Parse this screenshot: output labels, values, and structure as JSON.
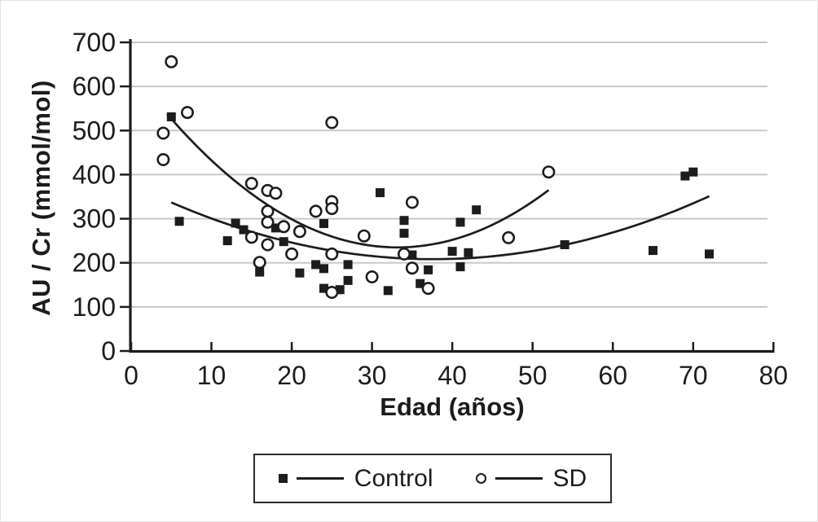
{
  "chart_data": {
    "type": "scatter",
    "title": "",
    "xlabel": "Edad (años)",
    "ylabel": "AU / Cr (mmol/mol)",
    "xlim": [
      0,
      80
    ],
    "ylim": [
      0,
      700
    ],
    "x_ticks": [
      0,
      10,
      20,
      30,
      40,
      50,
      60,
      70,
      80
    ],
    "y_ticks": [
      0,
      100,
      200,
      300,
      400,
      500,
      600,
      700
    ],
    "grid": "horizontal light gray lines at each y tick",
    "legend_position": "boxed, centered below x-axis title",
    "series": [
      {
        "name": "Control",
        "marker": "filled-square",
        "points": [
          [
            5,
            531
          ],
          [
            6,
            294
          ],
          [
            12,
            250
          ],
          [
            13,
            290
          ],
          [
            14,
            275
          ],
          [
            16,
            179
          ],
          [
            18,
            279
          ],
          [
            19,
            248
          ],
          [
            21,
            177
          ],
          [
            23,
            196
          ],
          [
            24,
            289
          ],
          [
            24,
            187
          ],
          [
            24,
            142
          ],
          [
            26,
            139
          ],
          [
            27,
            196
          ],
          [
            27,
            160
          ],
          [
            31,
            359
          ],
          [
            32,
            137
          ],
          [
            34,
            296
          ],
          [
            34,
            267
          ],
          [
            35,
            218
          ],
          [
            36,
            153
          ],
          [
            37,
            184
          ],
          [
            40,
            226
          ],
          [
            41,
            292
          ],
          [
            41,
            191
          ],
          [
            42,
            223
          ],
          [
            43,
            320
          ],
          [
            54,
            241
          ],
          [
            65,
            228
          ],
          [
            69,
            397
          ],
          [
            70,
            406
          ],
          [
            72,
            220
          ]
        ],
        "fit_curve": {
          "type": "quadratic",
          "a": 0.1208,
          "b": -9.093,
          "c": 379.4,
          "x_range": [
            5,
            72
          ]
        }
      },
      {
        "name": "SD",
        "marker": "open-circle",
        "points": [
          [
            4,
            494
          ],
          [
            4,
            434
          ],
          [
            5,
            656
          ],
          [
            7,
            541
          ],
          [
            15,
            380
          ],
          [
            15,
            258
          ],
          [
            16,
            201
          ],
          [
            17,
            364
          ],
          [
            17,
            317
          ],
          [
            17,
            292
          ],
          [
            17,
            241
          ],
          [
            18,
            358
          ],
          [
            19,
            282
          ],
          [
            20,
            220
          ],
          [
            21,
            271
          ],
          [
            23,
            317
          ],
          [
            25,
            518
          ],
          [
            25,
            339
          ],
          [
            25,
            323
          ],
          [
            25,
            220
          ],
          [
            25,
            133
          ],
          [
            29,
            261
          ],
          [
            30,
            168
          ],
          [
            34,
            220
          ],
          [
            35,
            337
          ],
          [
            35,
            188
          ],
          [
            37,
            142
          ],
          [
            47,
            257
          ],
          [
            52,
            406
          ]
        ],
        "fit_curve": {
          "type": "quadratic",
          "a": 0.3672,
          "b": -24.37,
          "c": 639.3,
          "x_range": [
            4.5,
            52
          ]
        }
      }
    ]
  },
  "colors": {
    "axis": "#1c1c1c",
    "grid": "#c8c8c8",
    "text": "#1c1c1c",
    "marker_fill": "#1c1c1c",
    "circle_fill": "#ffffff",
    "legend_border": "#2b2b2b",
    "background": "#ffffff"
  }
}
